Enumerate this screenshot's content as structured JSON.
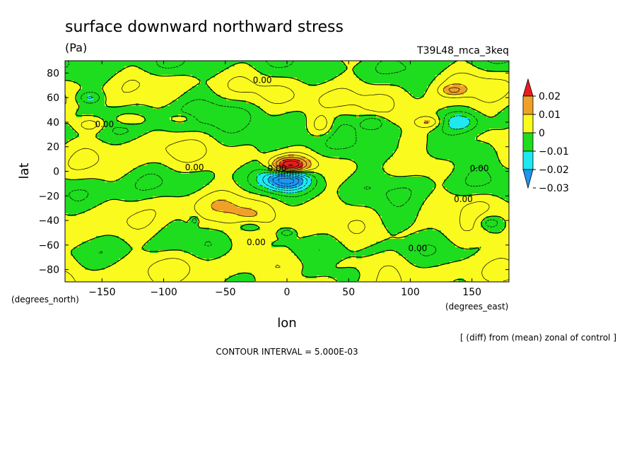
{
  "chart_data": {
    "type": "heatmap",
    "title": "surface downward northward stress",
    "units": "(Pa)",
    "run_label": "T39L48_mca_3keq",
    "xlabel": "lon",
    "ylabel": "lat",
    "x_units": "(degrees_east)",
    "y_units": "(degrees_north)",
    "xlim": [
      -180,
      180
    ],
    "ylim": [
      -90,
      90
    ],
    "x_ticks": [
      -150,
      -100,
      -50,
      0,
      50,
      100,
      150
    ],
    "x_tick_labels": [
      "−150",
      "−100",
      "−50",
      "0",
      "50",
      "100",
      "150"
    ],
    "y_ticks": [
      80,
      60,
      40,
      20,
      0,
      -20,
      -40,
      -60,
      -80
    ],
    "y_tick_labels": [
      "80",
      "60",
      "40",
      "20",
      "0",
      "−20",
      "−40",
      "−60",
      "−80"
    ],
    "contour_interval": "CONTOUR INTERVAL = 5.000E-03",
    "note": "[ (diff) from (mean) zonal of control ]",
    "colorbar": {
      "labels": [
        "0.02",
        "0.01",
        "0",
        "−0.01",
        "−0.02",
        "−0.03"
      ],
      "levels": [
        0.02,
        0.01,
        0,
        -0.01,
        -0.02,
        -0.03
      ],
      "colors": [
        "#e81d1d",
        "#f0a028",
        "#fafa1e",
        "#1edc1e",
        "#1ee8f0",
        "#1e96f0"
      ]
    },
    "contour_labels": [
      {
        "text": "0.00",
        "lon": -20,
        "lat": 72
      },
      {
        "text": "0.00",
        "lon": -148,
        "lat": 36
      },
      {
        "text": "0.00",
        "lon": -75,
        "lat": 1
      },
      {
        "text": "0.00",
        "lon": -8,
        "lat": 0
      },
      {
        "text": "0.00",
        "lon": 156,
        "lat": 0
      },
      {
        "text": "0.00",
        "lon": 143,
        "lat": -25
      },
      {
        "text": "0.00",
        "lon": -25,
        "lat": -60
      },
      {
        "text": "0.00",
        "lon": 106,
        "lat": -65
      }
    ],
    "anomalies": [
      {
        "lon": -125,
        "lat": 20,
        "rlon": 45,
        "rlat": 12,
        "value": 0.003
      },
      {
        "lon": 30,
        "lat": 55,
        "rlon": 35,
        "rlat": 15,
        "value": 0.004
      },
      {
        "lon": 120,
        "lat": 40,
        "rlon": 40,
        "rlat": 14,
        "value": 0.004
      },
      {
        "lon": -170,
        "lat": -45,
        "rlon": 30,
        "rlat": 30,
        "value": 0.003
      },
      {
        "lon": -80,
        "lat": -25,
        "rlon": 60,
        "rlat": 10,
        "value": 0.003
      },
      {
        "lon": -40,
        "lat": -30,
        "rlon": 25,
        "rlat": 30,
        "value": 0.003
      },
      {
        "lon": 0,
        "lat": -45,
        "rlon": 60,
        "rlat": 30,
        "value": 0.003
      },
      {
        "lon": 125,
        "lat": -52,
        "rlon": 50,
        "rlat": 12,
        "value": 0.004
      },
      {
        "lon": 160,
        "lat": -25,
        "rlon": 25,
        "rlat": 8,
        "value": 0.003
      },
      {
        "lon": -100,
        "lat": -75,
        "rlon": 60,
        "rlat": 12,
        "value": 0.003
      },
      {
        "lon": 60,
        "lat": -75,
        "rlon": 50,
        "rlat": 10,
        "value": 0.003
      },
      {
        "lon": 140,
        "lat": 75,
        "rlon": 40,
        "rlat": 10,
        "value": 0.003
      },
      {
        "lon": -100,
        "lat": 75,
        "rlon": 40,
        "rlat": 8,
        "value": 0.003
      },
      {
        "lon": -70,
        "lat": 50,
        "rlon": 70,
        "rlat": 12,
        "value": -0.004
      },
      {
        "lon": 150,
        "lat": 15,
        "rlon": 35,
        "rlat": 10,
        "value": -0.004
      },
      {
        "lon": 75,
        "lat": 15,
        "rlon": 60,
        "rlat": 10,
        "value": -0.004
      },
      {
        "lon": -155,
        "lat": -25,
        "rlon": 30,
        "rlat": 15,
        "value": -0.004
      },
      {
        "lon": 90,
        "lat": -42,
        "rlon": 60,
        "rlat": 15,
        "value": -0.004
      },
      {
        "lon": 0,
        "lat": -85,
        "rlon": 60,
        "rlat": 8,
        "value": -0.004
      },
      {
        "lon": 5,
        "lat": 22,
        "rlon": 40,
        "rlat": 10,
        "value": -0.004
      },
      {
        "lon": -160,
        "lat": 38,
        "rlon": 12,
        "rlat": 6,
        "value": 0.011
      },
      {
        "lon": -128,
        "lat": 42,
        "rlon": 12,
        "rlat": 5,
        "value": 0.011
      },
      {
        "lon": -85,
        "lat": 43,
        "rlon": 10,
        "rlat": 4,
        "value": 0.008
      },
      {
        "lon": 28,
        "lat": 37,
        "rlon": 10,
        "rlat": 9,
        "value": 0.011
      },
      {
        "lon": 115,
        "lat": 40,
        "rlon": 12,
        "rlat": 5,
        "value": 0.011
      },
      {
        "lon": 135,
        "lat": 66,
        "rlon": 10,
        "rlat": 4,
        "value": 0.011
      },
      {
        "lon": -160,
        "lat": 60,
        "rlon": 10,
        "rlat": 5,
        "value": -0.011
      },
      {
        "lon": 70,
        "lat": 40,
        "rlon": 10,
        "rlat": 6,
        "value": -0.011
      },
      {
        "lon": 140,
        "lat": 40,
        "rlon": 16,
        "rlat": 8,
        "value": -0.012
      },
      {
        "lon": -30,
        "lat": -45,
        "rlon": 12,
        "rlat": 5,
        "value": -0.011
      },
      {
        "lon": 165,
        "lat": -42,
        "rlon": 8,
        "rlat": 5,
        "value": -0.011
      },
      {
        "lon": -75,
        "lat": -40,
        "rlon": 3,
        "rlat": 3,
        "value": -0.011
      },
      {
        "lon": 0,
        "lat": -50,
        "rlon": 6,
        "rlat": 3,
        "value": -0.011
      },
      {
        "lon": 2,
        "lat": 4,
        "rlon": 15,
        "rlat": 7,
        "value": 0.035
      },
      {
        "lon": 0,
        "lat": -6,
        "rlon": 18,
        "rlat": 9,
        "value": -0.035
      }
    ]
  }
}
